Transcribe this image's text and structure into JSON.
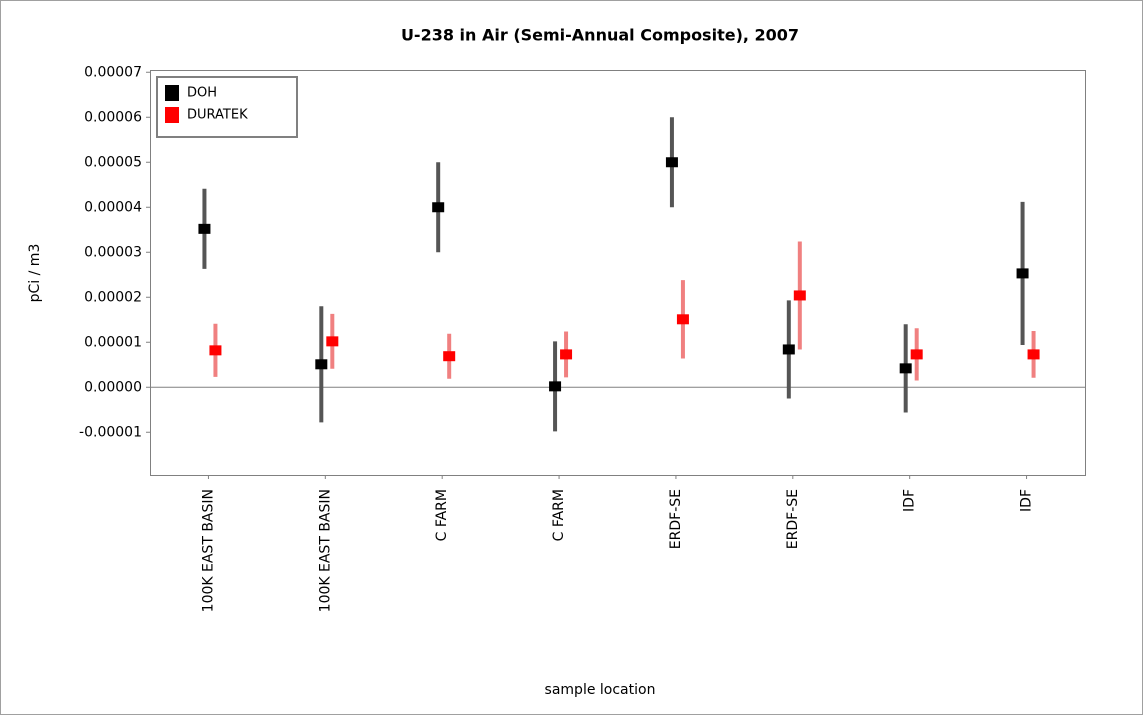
{
  "chart_data": {
    "type": "errorbar",
    "title": "U-238 in Air (Semi-Annual Composite), 2007",
    "x_label": "sample location",
    "y_label": "pCi / m3",
    "categories": [
      "100K EAST BASIN",
      "100K EAST BASIN",
      "C FARM",
      "C FARM",
      "ERDF-SE",
      "ERDF-SE",
      "IDF",
      "IDF"
    ],
    "series": [
      {
        "name": "DOH",
        "color": "#000000",
        "error_color": "#555555",
        "values": [
          3.52e-05,
          5.1e-06,
          4e-05,
          2e-07,
          5e-05,
          8.4e-06,
          4.2e-06,
          2.53e-05
        ],
        "errors": [
          8.9e-06,
          1.29e-05,
          1e-05,
          1e-05,
          1e-05,
          1.09e-05,
          9.8e-06,
          1.59e-05
        ]
      },
      {
        "name": "DURATEK",
        "color": "#ff0000",
        "error_color": "#f08080",
        "values": [
          8.2e-06,
          1.02e-05,
          6.9e-06,
          7.3e-06,
          1.51e-05,
          2.04e-05,
          7.3e-06,
          7.3e-06
        ],
        "errors": [
          5.9e-06,
          6.1e-06,
          5e-06,
          5.1e-06,
          8.7e-06,
          1.2e-05,
          5.8e-06,
          5.2e-06
        ]
      }
    ],
    "ylim": [
      -1.95e-05,
      7.05e-05
    ],
    "yticks": [
      -1e-05,
      {
        "value": 0,
        "label": "0.00000"
      },
      1e-05,
      2e-05,
      3e-05,
      4e-05,
      5e-05,
      6e-05,
      7e-05
    ],
    "legend": "upper left",
    "zero_line": true
  }
}
